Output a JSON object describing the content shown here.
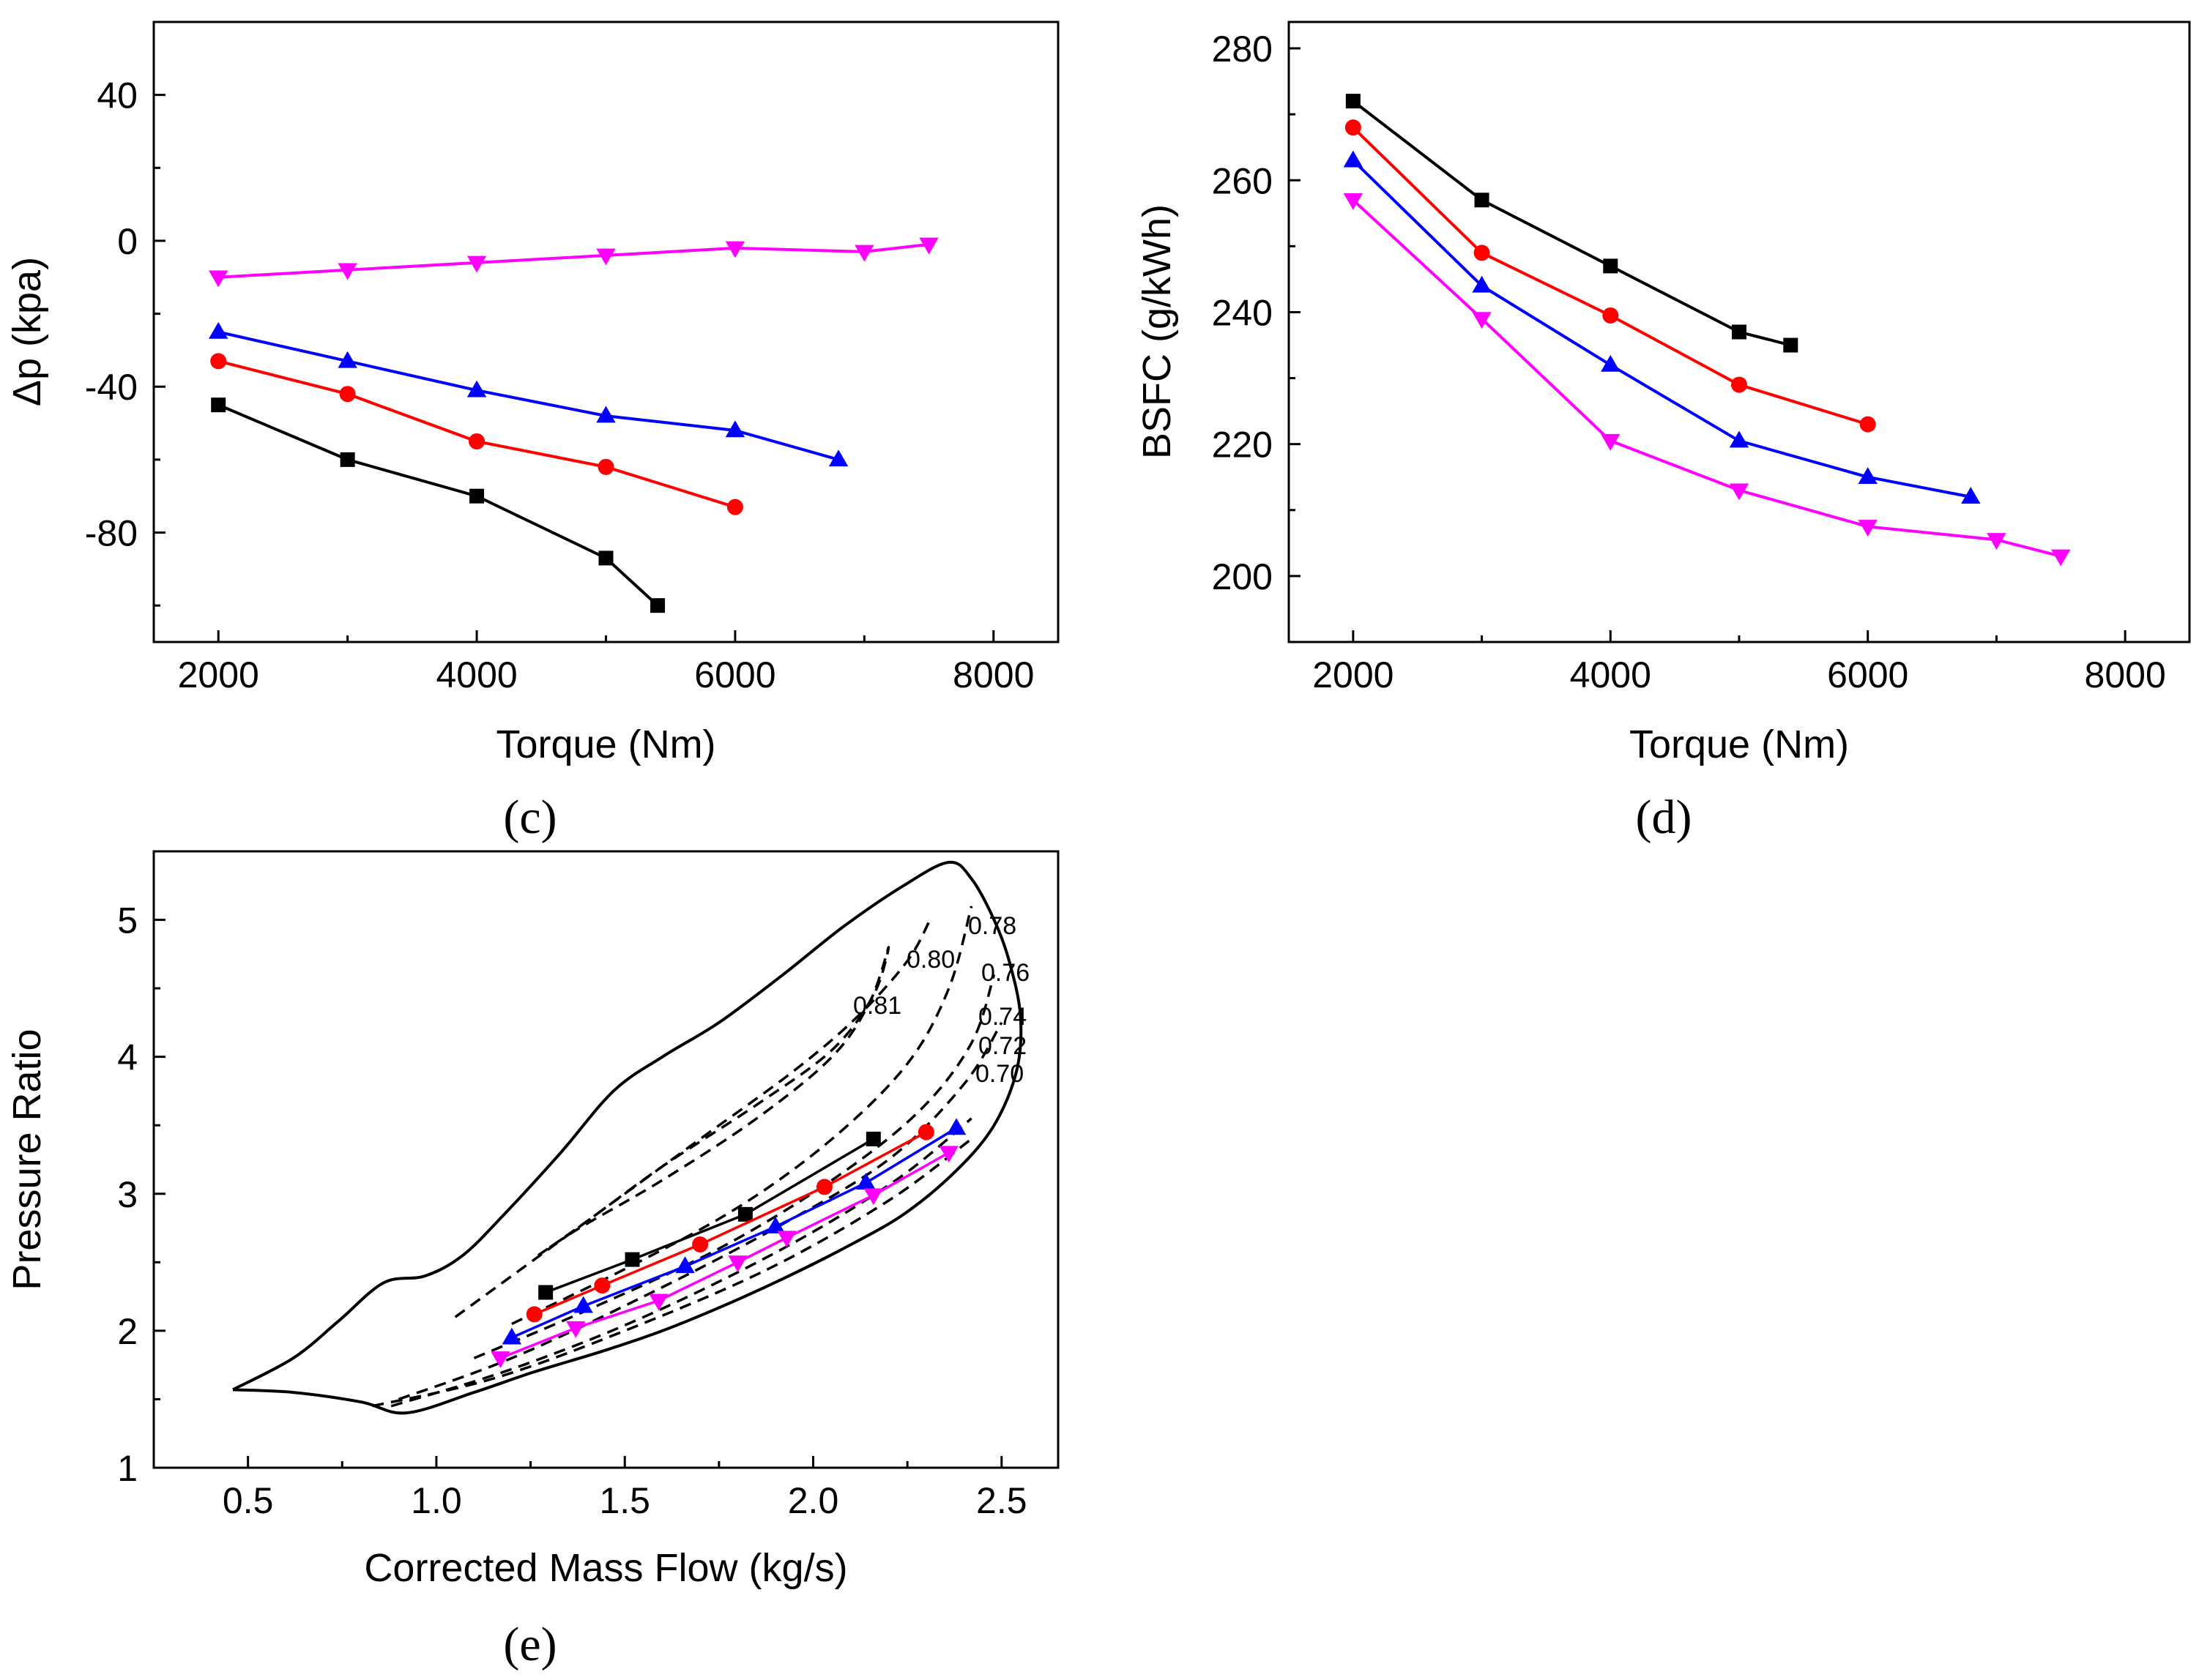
{
  "chart_data": [
    {
      "id": "c",
      "type": "line",
      "panel_label": "(c)",
      "xlabel": "Torque (Nm)",
      "ylabel": "Δp (kpa)",
      "xlim": [
        1500,
        8500
      ],
      "ylim": [
        -110,
        60
      ],
      "xticks": [
        2000,
        4000,
        6000,
        8000
      ],
      "xtick_labels": [
        "2000",
        "4000",
        "6000",
        "8000"
      ],
      "yticks": [
        -80,
        -40,
        0,
        40
      ],
      "ytick_labels": [
        "-80",
        "-40",
        "0",
        "40"
      ],
      "series": [
        {
          "name": "black",
          "color": "#000000",
          "marker": "square",
          "x": [
            2000,
            3000,
            4000,
            5000,
            5400
          ],
          "y": [
            -45,
            -60,
            -70,
            -87,
            -100
          ]
        },
        {
          "name": "red",
          "color": "#ff0000",
          "marker": "circle",
          "x": [
            2000,
            3000,
            4000,
            5000,
            6000
          ],
          "y": [
            -33,
            -42,
            -55,
            -62,
            -73
          ]
        },
        {
          "name": "blue",
          "color": "#0000ff",
          "marker": "triangle-up",
          "x": [
            2000,
            3000,
            4000,
            5000,
            6000,
            6800
          ],
          "y": [
            -25,
            -33,
            -41,
            -48,
            -52,
            -60
          ]
        },
        {
          "name": "magenta",
          "color": "#ff00ff",
          "marker": "triangle-down",
          "x": [
            2000,
            3000,
            4000,
            5000,
            6000,
            7000,
            7500
          ],
          "y": [
            -10,
            -8,
            -6,
            -4,
            -2,
            -3,
            -1
          ]
        }
      ]
    },
    {
      "id": "d",
      "type": "line",
      "panel_label": "(d)",
      "xlabel": "Torque (Nm)",
      "ylabel": "BSFC (g/kWh)",
      "xlim": [
        1500,
        8500
      ],
      "ylim": [
        190,
        284
      ],
      "xticks": [
        2000,
        4000,
        6000,
        8000
      ],
      "xtick_labels": [
        "2000",
        "4000",
        "6000",
        "8000"
      ],
      "yticks": [
        200,
        220,
        240,
        260,
        280
      ],
      "ytick_labels": [
        "200",
        "220",
        "240",
        "260",
        "280"
      ],
      "series": [
        {
          "name": "black",
          "color": "#000000",
          "marker": "square",
          "x": [
            2000,
            3000,
            4000,
            5000,
            5400
          ],
          "y": [
            272,
            257,
            247,
            237,
            235
          ]
        },
        {
          "name": "red",
          "color": "#ff0000",
          "marker": "circle",
          "x": [
            2000,
            3000,
            4000,
            5000,
            6000
          ],
          "y": [
            268,
            249,
            239.5,
            229,
            223
          ]
        },
        {
          "name": "blue",
          "color": "#0000ff",
          "marker": "triangle-up",
          "x": [
            2000,
            3000,
            4000,
            5000,
            6000,
            6800
          ],
          "y": [
            263,
            244,
            232,
            220.5,
            215,
            212
          ]
        },
        {
          "name": "magenta",
          "color": "#ff00ff",
          "marker": "triangle-down",
          "x": [
            2000,
            3000,
            4000,
            5000,
            6000,
            7000,
            7500
          ],
          "y": [
            257,
            239,
            220.5,
            213,
            207.5,
            205.5,
            203
          ]
        }
      ]
    },
    {
      "id": "e",
      "type": "line",
      "panel_label": "(e)",
      "xlabel": "Corrected Mass Flow (kg/s)",
      "ylabel": "Pressure Ratio",
      "xlim": [
        0.25,
        2.65
      ],
      "ylim": [
        1,
        5.5
      ],
      "xticks": [
        0.5,
        1.0,
        1.5,
        2.0,
        2.5
      ],
      "xtick_labels": [
        "0.5",
        "1.0",
        "1.5",
        "2.0",
        "2.5"
      ],
      "yticks": [
        1,
        2,
        3,
        4,
        5
      ],
      "ytick_labels": [
        "1",
        "2",
        "3",
        "4",
        "5"
      ],
      "map_boundary": {
        "x": [
          0.46,
          0.62,
          0.74,
          0.86,
          0.97,
          1.07,
          1.18,
          1.33,
          1.47,
          1.6,
          1.75,
          1.92,
          2.08,
          2.24,
          2.36,
          2.42,
          2.48,
          2.52,
          2.55,
          2.54,
          2.48,
          2.38,
          2.24,
          2.08,
          1.92,
          1.76,
          1.6,
          1.44,
          1.26,
          1.1,
          0.92,
          0.8,
          0.62,
          0.46
        ],
        "y": [
          1.57,
          1.8,
          2.07,
          2.35,
          2.4,
          2.55,
          2.85,
          3.3,
          3.75,
          4.0,
          4.25,
          4.6,
          4.95,
          5.25,
          5.42,
          5.3,
          5.0,
          4.7,
          4.3,
          3.9,
          3.5,
          3.17,
          2.85,
          2.6,
          2.38,
          2.18,
          2.0,
          1.85,
          1.7,
          1.55,
          1.4,
          1.48,
          1.55,
          1.57
        ]
      },
      "efficiency_contours": [
        {
          "label": "0.81",
          "x": [
            1.27,
            1.38,
            1.6,
            1.85,
            2.05,
            2.15,
            2.2,
            2.16,
            2.05,
            1.85,
            1.6,
            1.4,
            1.27
          ],
          "y": [
            2.55,
            2.75,
            3.1,
            3.55,
            4.0,
            4.4,
            4.8,
            4.45,
            4.05,
            3.65,
            3.2,
            2.8,
            2.55
          ]
        },
        {
          "label": "0.80",
          "x": [
            1.05,
            1.2,
            1.45,
            1.7,
            1.95,
            2.12,
            2.25,
            2.31
          ],
          "y": [
            2.1,
            2.4,
            2.9,
            3.4,
            3.9,
            4.3,
            4.7,
            5.0
          ]
        },
        {
          "label": "0.78",
          "x": [
            1.2,
            1.5,
            1.8,
            2.05,
            2.25,
            2.36,
            2.42
          ],
          "y": [
            2.05,
            2.45,
            2.9,
            3.4,
            3.95,
            4.5,
            5.1
          ]
        },
        {
          "label": "0.76",
          "x": [
            1.1,
            1.4,
            1.75,
            2.05,
            2.28,
            2.42,
            2.48
          ],
          "y": [
            1.8,
            2.15,
            2.6,
            3.1,
            3.6,
            4.1,
            4.6
          ]
        },
        {
          "label": "0.74",
          "x": [
            0.9,
            1.2,
            1.55,
            1.9,
            2.2,
            2.4,
            2.5
          ],
          "y": [
            1.5,
            1.8,
            2.25,
            2.75,
            3.25,
            3.8,
            4.25
          ]
        },
        {
          "label": "0.72",
          "x": [
            0.88,
            1.2,
            1.55,
            1.92,
            2.22,
            2.42
          ],
          "y": [
            1.45,
            1.72,
            2.1,
            2.6,
            3.1,
            3.55
          ]
        },
        {
          "label": "0.70",
          "x": [
            0.83,
            1.15,
            1.5,
            1.88,
            2.2,
            2.42
          ],
          "y": [
            1.45,
            1.65,
            2.0,
            2.45,
            2.95,
            3.4
          ]
        }
      ],
      "series": [
        {
          "name": "black",
          "color": "#000000",
          "marker": "square",
          "x": [
            1.29,
            1.52,
            1.82,
            2.16
          ],
          "y": [
            2.28,
            2.52,
            2.85,
            3.4
          ]
        },
        {
          "name": "red",
          "color": "#ff0000",
          "marker": "circle",
          "x": [
            1.26,
            1.44,
            1.7,
            2.03,
            2.3
          ],
          "y": [
            2.12,
            2.33,
            2.63,
            3.05,
            3.45
          ]
        },
        {
          "name": "blue",
          "color": "#0000ff",
          "marker": "triangle-up",
          "x": [
            1.2,
            1.39,
            1.66,
            1.9,
            2.14,
            2.38
          ],
          "y": [
            1.95,
            2.18,
            2.47,
            2.76,
            3.08,
            3.48
          ]
        },
        {
          "name": "magenta",
          "color": "#ff00ff",
          "marker": "triangle-down",
          "x": [
            1.17,
            1.37,
            1.59,
            1.8,
            1.93,
            2.16,
            2.36
          ],
          "y": [
            1.8,
            2.02,
            2.22,
            2.5,
            2.68,
            2.99,
            3.3
          ]
        }
      ]
    }
  ]
}
